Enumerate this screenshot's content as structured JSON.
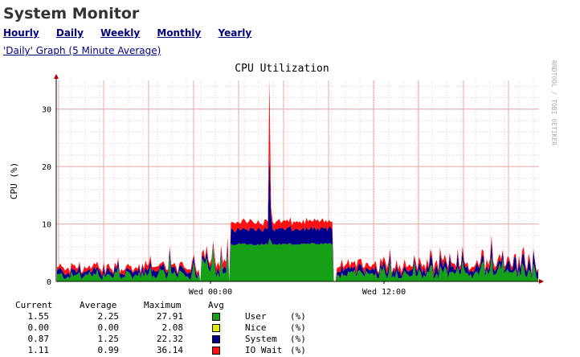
{
  "page": {
    "title": "System Monitor",
    "nav": [
      "Hourly",
      "Daily",
      "Weekly",
      "Monthly",
      "Yearly"
    ],
    "graph_link": "'Daily' Graph (5 Minute Average)",
    "watermark": "RRDTOOL / TOBI OETIKER"
  },
  "chart_data": {
    "type": "area",
    "title": "CPU Utilization",
    "ylabel": "CPU (%)",
    "ylim": [
      0,
      35
    ],
    "yticks": [
      0,
      10,
      20,
      30
    ],
    "xticks": [
      "Wed 00:00",
      "Wed 12:00"
    ],
    "grid": true,
    "stacked": true,
    "colors": {
      "user": "#16a016",
      "nice": "#e8e800",
      "system": "#00008b",
      "iowait": "#ff1111"
    },
    "series": [
      {
        "name": "User",
        "unit": "(%)",
        "color": "#16a016"
      },
      {
        "name": "Nice",
        "unit": "(%)",
        "color": "#e8e800"
      },
      {
        "name": "System",
        "unit": "(%)",
        "color": "#00008b"
      },
      {
        "name": "IO Wait",
        "unit": "(%)",
        "color": "#ff1111"
      }
    ]
  },
  "legend": {
    "headers": [
      "Current",
      "Average",
      "Maximum",
      "Avg"
    ],
    "rows": [
      {
        "current": "1.55",
        "average": "2.25",
        "maximum": "27.91",
        "name": "User",
        "unit": "(%)",
        "color": "#16a016"
      },
      {
        "current": "0.00",
        "average": "0.00",
        "maximum": "2.08",
        "name": "Nice",
        "unit": "(%)",
        "color": "#e8e800"
      },
      {
        "current": "0.87",
        "average": "1.25",
        "maximum": "22.32",
        "name": "System",
        "unit": "(%)",
        "color": "#00008b"
      },
      {
        "current": "1.11",
        "average": "0.99",
        "maximum": "36.14",
        "name": "IO Wait",
        "unit": "(%)",
        "color": "#ff1111"
      }
    ]
  }
}
